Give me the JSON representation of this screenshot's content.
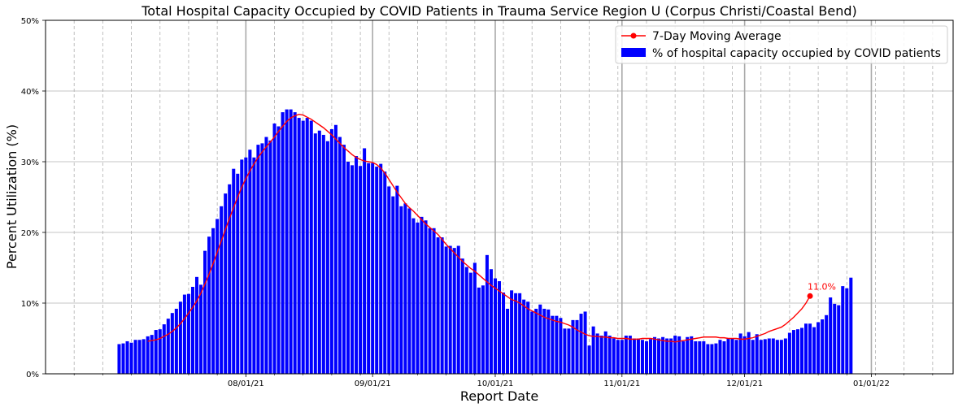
{
  "chart_data": {
    "type": "bar",
    "title": "Total Hospital Capacity Occupied by COVID Patients in Trauma Service Region U (Corpus Christi/Coastal Bend)",
    "xlabel": "Report Date",
    "ylabel": "Percent Utilization (%)",
    "ylim": [
      0,
      50
    ],
    "y_ticks": [
      "0%",
      "10%",
      "20%",
      "30%",
      "40%",
      "50%"
    ],
    "x_tick_labels": [
      "08/01/21",
      "09/01/21",
      "10/01/21",
      "11/01/21",
      "12/01/21",
      "01/01/22"
    ],
    "x_tick_dates": [
      "2021-08-01",
      "2021-09-01",
      "2021-10-01",
      "2021-11-01",
      "2021-12-01",
      "2022-01-01"
    ],
    "grid": true,
    "legend_position": "top-right",
    "series": [
      {
        "name": "% of hospital capacity occupied by COVID patients",
        "kind": "bar",
        "color": "#0000ff",
        "start_date": "2021-07-01",
        "values": [
          4.2,
          4.3,
          4.6,
          4.4,
          4.8,
          4.8,
          4.9,
          5.3,
          5.5,
          6.2,
          6.3,
          7.0,
          7.8,
          8.6,
          9.2,
          10.2,
          11.2,
          11.3,
          12.3,
          13.7,
          12.6,
          17.4,
          19.4,
          20.6,
          21.9,
          23.7,
          25.5,
          26.8,
          29.0,
          28.3,
          30.3,
          30.6,
          31.7,
          30.6,
          32.4,
          32.6,
          33.5,
          33.0,
          35.4,
          35.0,
          37.0,
          37.4,
          37.4,
          37.0,
          36.2,
          35.8,
          36.2,
          35.8,
          34.0,
          34.4,
          33.8,
          32.9,
          34.6,
          35.2,
          33.5,
          32.4,
          30.0,
          29.5,
          30.8,
          29.4,
          31.9,
          29.8,
          29.8,
          29.3,
          29.7,
          28.6,
          26.5,
          25.1,
          26.6,
          23.7,
          24.1,
          23.4,
          22.0,
          21.4,
          22.2,
          21.7,
          20.6,
          20.6,
          19.3,
          19.3,
          18.0,
          18.1,
          17.8,
          18.1,
          16.3,
          15.1,
          14.3,
          15.7,
          12.2,
          12.5,
          16.8,
          14.8,
          13.5,
          13.1,
          11.5,
          9.2,
          11.8,
          11.4,
          11.4,
          10.5,
          10.2,
          8.8,
          9.2,
          9.8,
          9.2,
          9.1,
          8.2,
          8.2,
          7.9,
          6.4,
          6.4,
          7.6,
          7.6,
          8.5,
          8.8,
          4.0,
          6.7,
          5.7,
          5.4,
          6.0,
          5.4,
          5.0,
          4.8,
          4.8,
          5.4,
          5.4,
          5.0,
          5.0,
          4.8,
          4.6,
          4.9,
          5.2,
          5.0,
          5.2,
          5.0,
          5.0,
          5.4,
          5.3,
          4.6,
          5.2,
          5.3,
          4.6,
          4.6,
          4.6,
          4.2,
          4.2,
          4.3,
          4.8,
          4.6,
          5.0,
          5.0,
          4.8,
          5.7,
          5.3,
          5.9,
          4.8,
          5.6,
          4.8,
          4.9,
          5.0,
          5.0,
          4.8,
          4.8,
          5.0,
          5.8,
          6.2,
          6.3,
          6.5,
          7.1,
          7.1,
          6.6,
          7.3,
          7.7,
          8.3,
          10.8,
          9.9,
          9.7,
          12.4,
          12.1,
          13.6
        ]
      },
      {
        "name": "7-Day Moving Average",
        "kind": "line",
        "color": "#ff0000",
        "start_date": "2021-07-08",
        "last_point_label": "11.0%",
        "values": [
          4.6,
          4.7,
          4.8,
          5.0,
          5.3,
          5.6,
          6.0,
          6.5,
          7.1,
          7.8,
          8.6,
          9.4,
          10.3,
          11.4,
          12.7,
          14.1,
          15.6,
          17.2,
          18.8,
          20.4,
          22.0,
          23.5,
          25.0,
          26.4,
          27.6,
          28.7,
          29.7,
          30.6,
          31.4,
          32.1,
          32.8,
          33.5,
          34.3,
          35.0,
          35.7,
          36.2,
          36.5,
          36.7,
          36.6,
          36.3,
          36.0,
          35.6,
          35.2,
          34.8,
          34.3,
          33.8,
          33.2,
          32.6,
          32.0,
          31.5,
          31.0,
          30.6,
          30.3,
          30.1,
          30.0,
          29.9,
          29.6,
          29.1,
          28.4,
          27.5,
          26.6,
          25.7,
          24.9,
          24.1,
          23.5,
          23.0,
          22.4,
          21.8,
          21.2,
          20.7,
          20.2,
          19.7,
          19.0,
          18.3,
          17.7,
          17.1,
          16.5,
          15.9,
          15.4,
          14.9,
          14.5,
          14.0,
          13.5,
          13.0,
          12.5,
          12.1,
          11.7,
          11.3,
          10.9,
          10.5,
          10.3,
          10.0,
          9.6,
          9.2,
          8.9,
          8.6,
          8.3,
          8.0,
          7.8,
          7.6,
          7.4,
          7.3,
          7.1,
          6.9,
          6.6,
          6.2,
          5.9,
          5.6,
          5.4,
          5.3,
          5.3,
          5.2,
          5.2,
          5.1,
          5.1,
          5.0,
          5.0,
          5.0,
          4.9,
          4.9,
          4.9,
          5.0,
          5.0,
          5.0,
          4.9,
          4.8,
          4.7,
          4.6,
          4.6,
          4.5,
          4.6,
          4.7,
          4.8,
          4.9,
          5.0,
          5.1,
          5.2,
          5.2,
          5.2,
          5.2,
          5.1,
          5.1,
          5.0,
          5.0,
          5.0,
          4.9,
          4.9,
          5.0,
          5.1,
          5.3,
          5.5,
          5.7,
          6.0,
          6.2,
          6.4,
          6.6,
          7.0,
          7.5,
          8.0,
          8.6,
          9.2,
          10.0,
          11.0
        ]
      }
    ]
  }
}
